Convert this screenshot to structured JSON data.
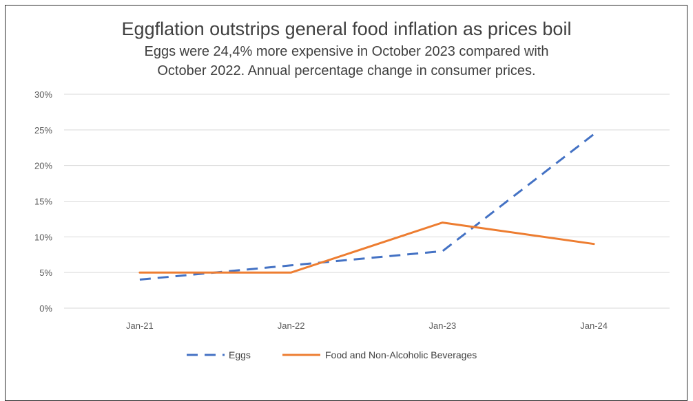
{
  "chart_data": {
    "type": "line",
    "title": "Eggflation outstrips general food inflation as prices boil",
    "subtitle_lines": [
      "Eggs were 24,4% more expensive in October 2023 compared with",
      "October 2022. Annual percentage change in consumer prices."
    ],
    "categories": [
      "Jan-21",
      "Jan-22",
      "Jan-23",
      "Jan-24"
    ],
    "y_ticks": [
      "0%",
      "5%",
      "10%",
      "15%",
      "20%",
      "25%",
      "30%"
    ],
    "ylim": [
      0,
      30
    ],
    "grid": true,
    "legend_position": "bottom",
    "series": [
      {
        "name": "Eggs",
        "values": [
          4,
          6,
          8,
          24.4
        ],
        "color": "#4472c4",
        "style": "dashed"
      },
      {
        "name": "Food and Non-Alcoholic Beverages",
        "values": [
          5,
          5,
          12,
          9
        ],
        "color": "#ed7d31",
        "style": "solid"
      }
    ]
  }
}
